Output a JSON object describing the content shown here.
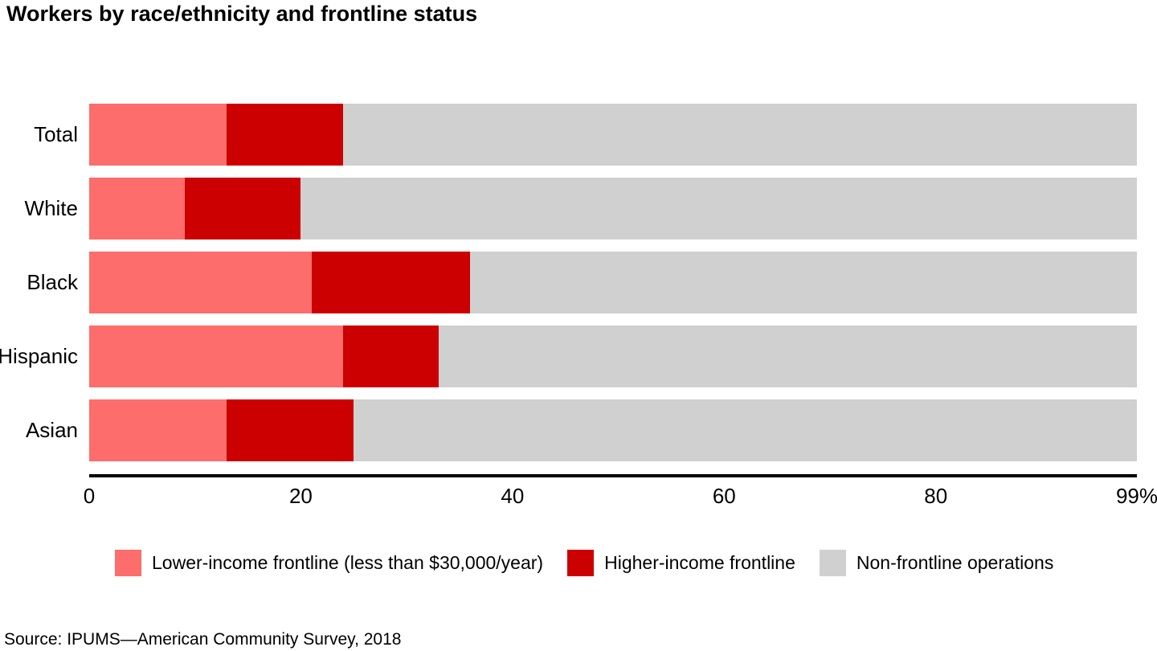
{
  "title": "Workers by race/ethnicity and frontline status",
  "source": "Source: IPUMS—American Community Survey, 2018",
  "colors": {
    "lower_income_frontline": "#FC6D6B",
    "higher_income_frontline": "#CC0000",
    "non_frontline": "#D0D0D0",
    "axis": "#000000",
    "text": "#000000",
    "background": "#FFFFFF"
  },
  "chart_data": {
    "type": "bar",
    "orientation": "horizontal",
    "stacked": true,
    "title": "Workers by race/ethnicity and frontline status",
    "categories": [
      "Total",
      "White",
      "Black",
      "Hispanic",
      "Asian"
    ],
    "series": [
      {
        "name": "Lower-income frontline (less than $30,000/year)",
        "key": "lower-income-frontline",
        "color": "#FC6D6B",
        "values": [
          13,
          9,
          21,
          24,
          13
        ]
      },
      {
        "name": "Higher-income frontline",
        "key": "higher-income-frontline",
        "color": "#CC0000",
        "values": [
          11,
          11,
          15,
          9,
          12
        ]
      },
      {
        "name": "Non-frontline operations",
        "key": "non-frontline-operations",
        "color": "#D0D0D0",
        "values": [
          75,
          79,
          63,
          66,
          74
        ]
      }
    ],
    "xlabel": "",
    "ylabel": "",
    "xlim": [
      0,
      99
    ],
    "x_ticks": [
      {
        "value": 0,
        "label": "0"
      },
      {
        "value": 20,
        "label": "20"
      },
      {
        "value": 40,
        "label": "40"
      },
      {
        "value": 60,
        "label": "60"
      },
      {
        "value": 80,
        "label": "80"
      },
      {
        "value": 99,
        "label": "99%"
      }
    ],
    "grid": false,
    "legend_position": "bottom",
    "unit": "%"
  }
}
